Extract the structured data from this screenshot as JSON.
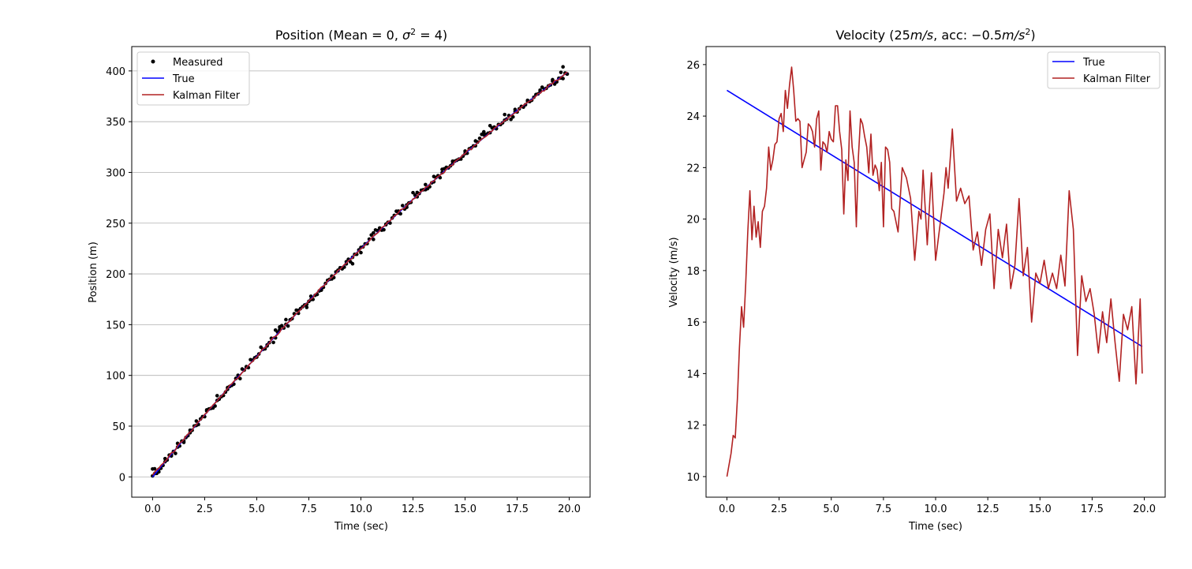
{
  "chart_data": [
    {
      "type": "scatter+line",
      "title": "Position (Mean = 0, σ² = 4)",
      "title_parts": {
        "prefix": "Position (Mean = 0, ",
        "sigma": "σ",
        "exp": "2",
        "suffix": " = 4)"
      },
      "xlabel": "Time (sec)",
      "ylabel": "Position (m)",
      "xlim": [
        -1.0,
        21.0
      ],
      "ylim": [
        -20,
        424
      ],
      "xticks": [
        0.0,
        2.5,
        5.0,
        7.5,
        10.0,
        12.5,
        15.0,
        17.5,
        20.0
      ],
      "xtick_labels": [
        "0.0",
        "2.5",
        "5.0",
        "7.5",
        "10.0",
        "12.5",
        "15.0",
        "17.5",
        "20.0"
      ],
      "yticks": [
        0,
        50,
        100,
        150,
        200,
        250,
        300,
        350,
        400
      ],
      "ytick_labels": [
        "0",
        "50",
        "100",
        "150",
        "200",
        "250",
        "300",
        "350",
        "400"
      ],
      "grid": "horizontal",
      "legend_position": "upper-left",
      "true_model": {
        "x0": 0,
        "v0": 25,
        "acc": -0.5,
        "t_start": 0.0,
        "t_end": 19.9,
        "dt": 0.1
      },
      "series": [
        {
          "name": "Measured",
          "style": "markers",
          "color": "#000000"
        },
        {
          "name": "True",
          "style": "line",
          "color": "#0000ff"
        },
        {
          "name": "Kalman Filter",
          "style": "line",
          "color": "#b22222"
        }
      ],
      "measured_sample": {
        "x": [
          0.0,
          0.1,
          0.3,
          0.6,
          0.9,
          1.2,
          1.5,
          1.8,
          2.1,
          2.6,
          3.1,
          3.6,
          4.0,
          4.5,
          5.0,
          5.5,
          5.9,
          6.1,
          6.4,
          7.0,
          7.4,
          7.6,
          8.1,
          8.6,
          8.9,
          9.1,
          9.3,
          9.6,
          10.0,
          10.6,
          11.2,
          11.8,
          12.2,
          12.7,
          13.1,
          13.5,
          13.9,
          14.4,
          15.0,
          15.5,
          15.9,
          16.2,
          16.5,
          16.9,
          17.4,
          18.0,
          18.6,
          19.2,
          19.6,
          19.7,
          19.9
        ],
        "y": [
          1,
          8,
          5,
          18,
          22,
          33,
          34,
          46,
          55,
          66,
          80,
          88,
          97,
          108,
          118,
          129,
          137,
          145,
          155,
          164,
          167,
          178,
          184,
          195,
          203,
          206,
          212,
          210,
          221,
          234,
          249,
          260,
          268,
          276,
          288,
          296,
          303,
          311,
          321,
          331,
          340,
          346,
          343,
          357,
          362,
          371,
          381,
          390,
          393,
          404,
          397
        ]
      },
      "kalman_sample": {
        "x": [
          0.0,
          0.5,
          1.0,
          2.0,
          3.0,
          4.0,
          5.0,
          6.0,
          7.0,
          8.0,
          9.0,
          10.0,
          11.0,
          12.0,
          13.0,
          14.0,
          15.0,
          16.0,
          17.0,
          18.0,
          19.0,
          20.0
        ],
        "y": [
          2,
          12,
          24,
          50,
          73,
          95,
          118,
          140,
          162,
          184,
          205,
          226,
          246,
          266,
          285,
          304,
          322,
          340,
          357,
          373,
          389,
          401
        ]
      }
    },
    {
      "type": "line",
      "title": "Velocity (25m/s, acc: −0.5m/s²)",
      "title_parts": {
        "prefix": "Velocity (25",
        "unit1": "m/s",
        "mid": ", acc: ",
        "neg": "−0.5",
        "unit2": "m/s",
        "exp": "2",
        "suffix": ")"
      },
      "xlabel": "Time (sec)",
      "ylabel": "Velocity (m/s)",
      "xlim": [
        -1.0,
        21.0
      ],
      "ylim": [
        9.2,
        26.7
      ],
      "xticks": [
        0.0,
        2.5,
        5.0,
        7.5,
        10.0,
        12.5,
        15.0,
        17.5,
        20.0
      ],
      "xtick_labels": [
        "0.0",
        "2.5",
        "5.0",
        "7.5",
        "10.0",
        "12.5",
        "15.0",
        "17.5",
        "20.0"
      ],
      "yticks": [
        10,
        12,
        14,
        16,
        18,
        20,
        22,
        24,
        26
      ],
      "ytick_labels": [
        "10",
        "12",
        "14",
        "16",
        "18",
        "20",
        "22",
        "24",
        "26"
      ],
      "grid": "none",
      "legend_position": "upper-right",
      "series": [
        {
          "name": "True",
          "style": "line",
          "color": "#0000ff",
          "x": [
            0.0,
            19.9
          ],
          "y": [
            25.0,
            15.05
          ]
        },
        {
          "name": "Kalman Filter",
          "style": "line",
          "color": "#b22222",
          "x": [
            0.0,
            0.2,
            0.3,
            0.4,
            0.5,
            0.6,
            0.7,
            0.8,
            0.9,
            1.0,
            1.1,
            1.2,
            1.3,
            1.4,
            1.5,
            1.6,
            1.7,
            1.8,
            1.9,
            2.0,
            2.1,
            2.2,
            2.3,
            2.4,
            2.5,
            2.6,
            2.7,
            2.8,
            2.9,
            3.0,
            3.1,
            3.2,
            3.3,
            3.4,
            3.5,
            3.6,
            3.7,
            3.8,
            3.9,
            4.0,
            4.1,
            4.2,
            4.3,
            4.4,
            4.5,
            4.6,
            4.7,
            4.8,
            4.9,
            5.0,
            5.1,
            5.2,
            5.3,
            5.4,
            5.5,
            5.6,
            5.7,
            5.8,
            5.9,
            6.0,
            6.1,
            6.2,
            6.3,
            6.4,
            6.5,
            6.6,
            6.7,
            6.8,
            6.9,
            7.0,
            7.1,
            7.2,
            7.3,
            7.4,
            7.5,
            7.6,
            7.7,
            7.8,
            7.9,
            8.0,
            8.2,
            8.4,
            8.6,
            8.8,
            9.0,
            9.2,
            9.3,
            9.4,
            9.6,
            9.8,
            10.0,
            10.2,
            10.4,
            10.5,
            10.6,
            10.8,
            11.0,
            11.2,
            11.4,
            11.6,
            11.8,
            12.0,
            12.2,
            12.4,
            12.6,
            12.8,
            13.0,
            13.2,
            13.4,
            13.6,
            13.8,
            14.0,
            14.2,
            14.4,
            14.6,
            14.8,
            15.0,
            15.2,
            15.4,
            15.6,
            15.8,
            16.0,
            16.2,
            16.4,
            16.6,
            16.8,
            17.0,
            17.2,
            17.4,
            17.6,
            17.8,
            18.0,
            18.2,
            18.4,
            18.6,
            18.8,
            19.0,
            19.2,
            19.4,
            19.6,
            19.8,
            19.9
          ],
          "y": [
            10.0,
            10.9,
            11.6,
            11.5,
            13.0,
            15.0,
            16.6,
            15.8,
            17.5,
            19.5,
            21.1,
            19.2,
            20.5,
            19.3,
            19.9,
            18.9,
            20.3,
            20.5,
            21.2,
            22.8,
            21.9,
            22.3,
            22.9,
            23.0,
            23.9,
            24.1,
            23.4,
            25.0,
            24.3,
            25.2,
            25.9,
            25.0,
            23.8,
            23.9,
            23.8,
            22.0,
            22.3,
            22.6,
            23.7,
            23.6,
            23.4,
            22.8,
            23.9,
            24.2,
            21.9,
            23.0,
            22.9,
            22.6,
            23.4,
            23.1,
            23.0,
            24.4,
            24.4,
            23.4,
            22.7,
            20.2,
            22.3,
            21.5,
            24.2,
            22.8,
            22.2,
            19.7,
            22.4,
            23.9,
            23.7,
            23.2,
            22.8,
            21.8,
            23.3,
            21.7,
            22.1,
            21.9,
            21.1,
            22.2,
            19.7,
            22.8,
            22.7,
            22.2,
            20.4,
            20.3,
            19.5,
            22.0,
            21.6,
            20.8,
            18.4,
            20.3,
            20.0,
            21.9,
            19.0,
            21.8,
            18.4,
            19.7,
            21.0,
            22.0,
            21.2,
            23.5,
            20.7,
            21.2,
            20.6,
            20.9,
            18.8,
            19.5,
            18.2,
            19.6,
            20.2,
            17.3,
            19.6,
            18.5,
            19.8,
            17.3,
            18.2,
            20.8,
            17.8,
            18.9,
            16.0,
            17.9,
            17.5,
            18.4,
            17.3,
            17.9,
            17.3,
            18.6,
            17.4,
            21.1,
            19.6,
            14.7,
            17.8,
            16.8,
            17.3,
            16.3,
            14.8,
            16.4,
            15.2,
            16.9,
            15.2,
            13.7,
            16.3,
            15.7,
            16.6,
            13.6,
            16.9,
            14.0
          ]
        }
      ]
    }
  ]
}
